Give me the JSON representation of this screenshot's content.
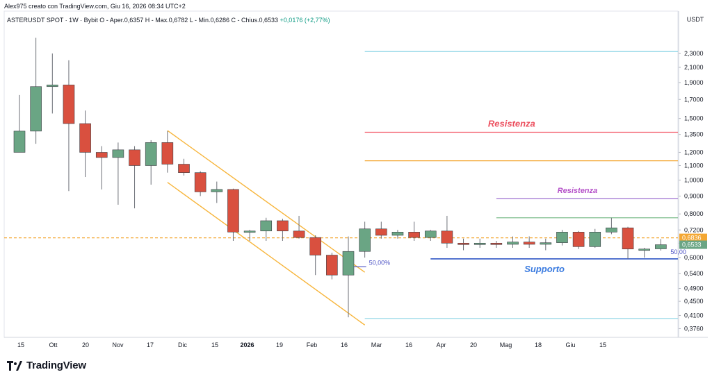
{
  "header": {
    "byline": "Alex975 creato con TradingView.com, Giu 16, 2026 08:34 UTC+2"
  },
  "legend": {
    "symbol": "ASTERUSDT SPOT · 1W · Bybit",
    "ohlc_text": "O - Aper.0,6357  H - Max.0,6782  L - Min.0,6286  C - Chius.0,6533",
    "change": "+0,0176 (+2,77%)"
  },
  "brand": {
    "name": "TradingView",
    "icon": "tradingview-logo-icon"
  },
  "colors": {
    "up": "#6aa584",
    "down": "#d9503f",
    "channel": "#f7b53b",
    "resistance_red": "#f25563",
    "resistance_label": "#ec4f5e",
    "orange_level": "#f4a732",
    "purple_level": "#9c6fd0",
    "purple_label": "#b44fc8",
    "green_level": "#7dbb8c",
    "cyan_level": "#8fd6e6",
    "support_level": "#2f56c5",
    "support_label": "#3a7be0",
    "fib_label": "#4a50c4"
  },
  "chart_data": {
    "type": "candlestick",
    "y_axis_unit": "USDT",
    "y_scale": "log",
    "ylim": [
      0.355,
      2.75
    ],
    "y_ticks": [
      "2,3000",
      "2,1000",
      "1,9000",
      "1,7000",
      "1,5000",
      "1,3500",
      "1,2000",
      "1,1000",
      "1,0000",
      "0,9000",
      "0,8000",
      "0,7200",
      "0,6600",
      "0,6000",
      "0,5400",
      "0,4900",
      "0,4500",
      "0,4100",
      "0,3760"
    ],
    "x_ticks": [
      "15",
      "Ott",
      "20",
      "Nov",
      "17",
      "Dic",
      "15",
      "2026",
      "19",
      "Feb",
      "16",
      "Mar",
      "16",
      "Apr",
      "20",
      "Mag",
      "18",
      "Giu",
      "15"
    ],
    "candles": [
      {
        "o": 1.2,
        "h": 1.75,
        "l": 1.2,
        "c": 1.38
      },
      {
        "o": 1.38,
        "h": 2.55,
        "l": 1.27,
        "c": 1.85
      },
      {
        "o": 1.85,
        "h": 2.3,
        "l": 1.55,
        "c": 1.87
      },
      {
        "o": 1.87,
        "h": 2.2,
        "l": 0.93,
        "c": 1.45
      },
      {
        "o": 1.45,
        "h": 1.58,
        "l": 1.02,
        "c": 1.2
      },
      {
        "o": 1.2,
        "h": 1.25,
        "l": 0.94,
        "c": 1.16
      },
      {
        "o": 1.16,
        "h": 1.28,
        "l": 0.85,
        "c": 1.22
      },
      {
        "o": 1.22,
        "h": 1.25,
        "l": 0.83,
        "c": 1.1
      },
      {
        "o": 1.1,
        "h": 1.3,
        "l": 0.97,
        "c": 1.28
      },
      {
        "o": 1.28,
        "h": 1.38,
        "l": 1.05,
        "c": 1.11
      },
      {
        "o": 1.11,
        "h": 1.15,
        "l": 1.03,
        "c": 1.05
      },
      {
        "o": 1.05,
        "h": 1.06,
        "l": 0.9,
        "c": 0.925
      },
      {
        "o": 0.925,
        "h": 0.99,
        "l": 0.86,
        "c": 0.94
      },
      {
        "o": 0.94,
        "h": 0.945,
        "l": 0.67,
        "c": 0.71
      },
      {
        "o": 0.71,
        "h": 0.72,
        "l": 0.67,
        "c": 0.715
      },
      {
        "o": 0.715,
        "h": 0.78,
        "l": 0.67,
        "c": 0.765
      },
      {
        "o": 0.765,
        "h": 0.775,
        "l": 0.67,
        "c": 0.715
      },
      {
        "o": 0.715,
        "h": 0.79,
        "l": 0.68,
        "c": 0.685
      },
      {
        "o": 0.685,
        "h": 0.695,
        "l": 0.535,
        "c": 0.61
      },
      {
        "o": 0.61,
        "h": 0.62,
        "l": 0.52,
        "c": 0.535
      },
      {
        "o": 0.535,
        "h": 0.69,
        "l": 0.405,
        "c": 0.625
      },
      {
        "o": 0.625,
        "h": 0.76,
        "l": 0.6,
        "c": 0.725
      },
      {
        "o": 0.725,
        "h": 0.76,
        "l": 0.68,
        "c": 0.695
      },
      {
        "o": 0.695,
        "h": 0.72,
        "l": 0.68,
        "c": 0.71
      },
      {
        "o": 0.71,
        "h": 0.76,
        "l": 0.67,
        "c": 0.685
      },
      {
        "o": 0.685,
        "h": 0.72,
        "l": 0.67,
        "c": 0.715
      },
      {
        "o": 0.715,
        "h": 0.79,
        "l": 0.64,
        "c": 0.66
      },
      {
        "o": 0.66,
        "h": 0.68,
        "l": 0.63,
        "c": 0.655
      },
      {
        "o": 0.655,
        "h": 0.68,
        "l": 0.64,
        "c": 0.66
      },
      {
        "o": 0.66,
        "h": 0.67,
        "l": 0.64,
        "c": 0.655
      },
      {
        "o": 0.655,
        "h": 0.69,
        "l": 0.64,
        "c": 0.665
      },
      {
        "o": 0.665,
        "h": 0.69,
        "l": 0.64,
        "c": 0.655
      },
      {
        "o": 0.655,
        "h": 0.68,
        "l": 0.63,
        "c": 0.662
      },
      {
        "o": 0.662,
        "h": 0.72,
        "l": 0.65,
        "c": 0.71
      },
      {
        "o": 0.71,
        "h": 0.715,
        "l": 0.635,
        "c": 0.645
      },
      {
        "o": 0.645,
        "h": 0.725,
        "l": 0.64,
        "c": 0.71
      },
      {
        "o": 0.71,
        "h": 0.78,
        "l": 0.7,
        "c": 0.73
      },
      {
        "o": 0.73,
        "h": 0.735,
        "l": 0.595,
        "c": 0.635
      },
      {
        "o": 0.635,
        "h": 0.64,
        "l": 0.6,
        "c": 0.635
      },
      {
        "o": 0.6357,
        "h": 0.6782,
        "l": 0.6286,
        "c": 0.6533
      }
    ],
    "price_tags": [
      {
        "value": 0.6836,
        "label": "0,6836",
        "color": "#f4a732"
      },
      {
        "value": 0.6533,
        "label": "0,6533",
        "color": "#6aa584"
      }
    ],
    "levels": [
      {
        "value": 2.33,
        "color": "#8fd6e6",
        "label": "",
        "from_bar": 21
      },
      {
        "value": 1.37,
        "color": "#f25563",
        "label": "Resistenza",
        "from_bar": 21
      },
      {
        "value": 1.135,
        "color": "#f4a732",
        "label": "",
        "from_bar": 21
      },
      {
        "value": 0.885,
        "color": "#9c6fd0",
        "label": "Resistenza",
        "from_bar": 29
      },
      {
        "value": 0.78,
        "color": "#7dbb8c",
        "label": "",
        "from_bar": 29
      },
      {
        "value": 0.595,
        "color": "#2f56c5",
        "label": "Supporto",
        "from_bar": 25
      },
      {
        "value": 0.402,
        "color": "#8fd6e6",
        "label": "",
        "from_bar": 21
      }
    ],
    "fib_labels": [
      "50,00%",
      "50,00"
    ],
    "channel": {
      "upper": [
        {
          "bar": 9,
          "price": 1.385
        },
        {
          "bar": 21,
          "price": 0.545
        }
      ],
      "lower": [
        {
          "bar": 9,
          "price": 0.985
        },
        {
          "bar": 21,
          "price": 0.385
        }
      ]
    }
  }
}
